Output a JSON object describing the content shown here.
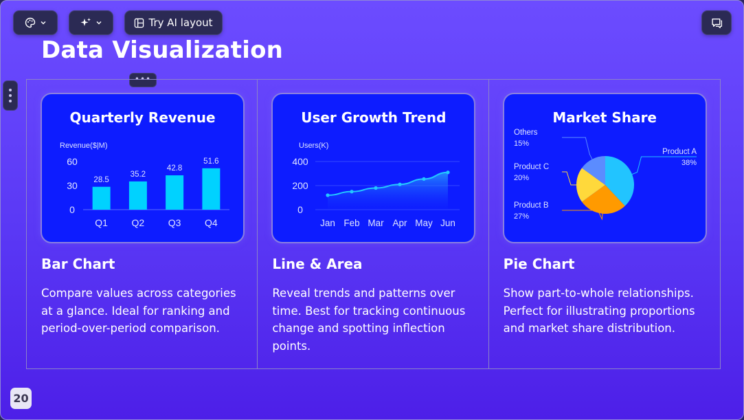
{
  "toolbar": {
    "theme_button_icon": "palette-icon",
    "ai_button_icon": "sparkle-icon",
    "try_ai_layout_label": "Try AI layout",
    "comments_icon": "comment-icon"
  },
  "slide": {
    "title": "Data Visualization",
    "page_number": "20"
  },
  "columns": [
    {
      "card_title": "Quarterly Revenue",
      "feature_title": "Bar Chart",
      "description": "Compare values across categories at a glance. Ideal for ranking and period-over-period comparison."
    },
    {
      "card_title": "User Growth Trend",
      "feature_title": "Line & Area",
      "description": "Reveal trends and patterns over time. Best for tracking continuous change and spotting inflection points."
    },
    {
      "card_title": "Market Share",
      "feature_title": "Pie Chart",
      "description": "Show part-to-whole relationships. Perfect for illustrating proportions and market share distribution."
    }
  ],
  "colors": {
    "bar": "#00d2ff",
    "line": "#23c8ff",
    "card_bg": "#0d1cff",
    "pie_a": "#22c4ff",
    "pie_b": "#ff9a00",
    "pie_c": "#ffd93b",
    "pie_others": "#5b8cff"
  },
  "chart_data": [
    {
      "type": "bar",
      "title": "Quarterly Revenue",
      "ylabel": "Revenue($|M)",
      "categories": [
        "Q1",
        "Q2",
        "Q3",
        "Q4"
      ],
      "values": [
        28.5,
        35.2,
        42.8,
        51.6
      ],
      "value_labels": [
        "28.5",
        "35.2",
        "42.8",
        "51.6"
      ],
      "yticks": [
        "0",
        "30",
        "60"
      ],
      "ylim": [
        0,
        60
      ]
    },
    {
      "type": "area",
      "title": "User Growth Trend",
      "ylabel": "Users(K)",
      "categories": [
        "Jan",
        "Feb",
        "Mar",
        "Apr",
        "May",
        "Jun"
      ],
      "values": [
        120,
        150,
        180,
        210,
        255,
        310
      ],
      "yticks": [
        "0",
        "200",
        "400"
      ],
      "ylim": [
        0,
        400
      ]
    },
    {
      "type": "pie",
      "title": "Market Share",
      "slices": [
        {
          "label": "Product A",
          "value": 38,
          "pct_label": "38%"
        },
        {
          "label": "Product B",
          "value": 27,
          "pct_label": "27%"
        },
        {
          "label": "Product C",
          "value": 20,
          "pct_label": "20%"
        },
        {
          "label": "Others",
          "value": 15,
          "pct_label": "15%"
        }
      ]
    }
  ]
}
